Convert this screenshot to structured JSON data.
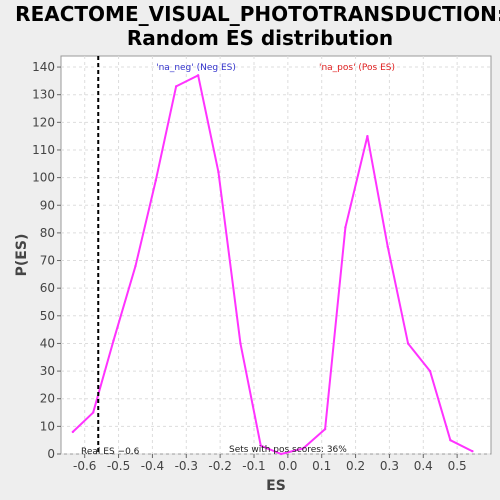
{
  "chart_data": {
    "type": "line",
    "title": "REACTOME_VISUAL_PHOTOTRANSDUCTION: Random ES distribution",
    "title_lines": [
      "REACTOME_VISUAL_PHOTOTRANSDUCTION:",
      "Random ES distribution"
    ],
    "xlabel": "ES",
    "ylabel": "P(ES)",
    "xlim": [
      -0.67,
      0.6
    ],
    "ylim": [
      0,
      144
    ],
    "xticks": [
      -0.6,
      -0.5,
      -0.4,
      -0.3,
      -0.2,
      -0.1,
      0.0,
      0.1,
      0.2,
      0.3,
      0.4,
      0.5
    ],
    "xtick_labels": [
      "-0.6",
      "-0.5",
      "-0.4",
      "-0.3",
      "-0.2",
      "-0.1",
      "0.0",
      "0.1",
      "0.2",
      "0.3",
      "0.4",
      "0.5"
    ],
    "yticks": [
      0,
      10,
      20,
      30,
      40,
      50,
      60,
      70,
      80,
      90,
      100,
      110,
      120,
      130,
      140
    ],
    "ytick_labels": [
      "0",
      "10",
      "20",
      "30",
      "40",
      "50",
      "60",
      "70",
      "80",
      "90",
      "100",
      "110",
      "120",
      "130",
      "140"
    ],
    "grid": true,
    "series": [
      {
        "color": "#ff33ff",
        "x": [
          -0.635,
          -0.575,
          -0.515,
          -0.45,
          -0.39,
          -0.33,
          -0.265,
          -0.205,
          -0.14,
          -0.08,
          -0.02,
          0.045,
          0.11,
          0.17,
          0.235,
          0.295,
          0.355,
          0.42,
          0.48,
          0.545
        ],
        "y": [
          8,
          15,
          41,
          68,
          99,
          133,
          137,
          102,
          40,
          3,
          0,
          2,
          9,
          82,
          115,
          75,
          40,
          30,
          5,
          1
        ]
      }
    ],
    "reference_line": {
      "x": -0.56,
      "style": "dashed",
      "color": "#000000",
      "label": "Real ES −0.6"
    },
    "annotations": {
      "neg_label": "'na_neg' (Neg ES)",
      "neg_color": "#3333cc",
      "pos_label": "'na_pos' (Pos ES)",
      "pos_color": "#e02020",
      "pos_scores": "Sets with pos scores: 36%"
    }
  }
}
